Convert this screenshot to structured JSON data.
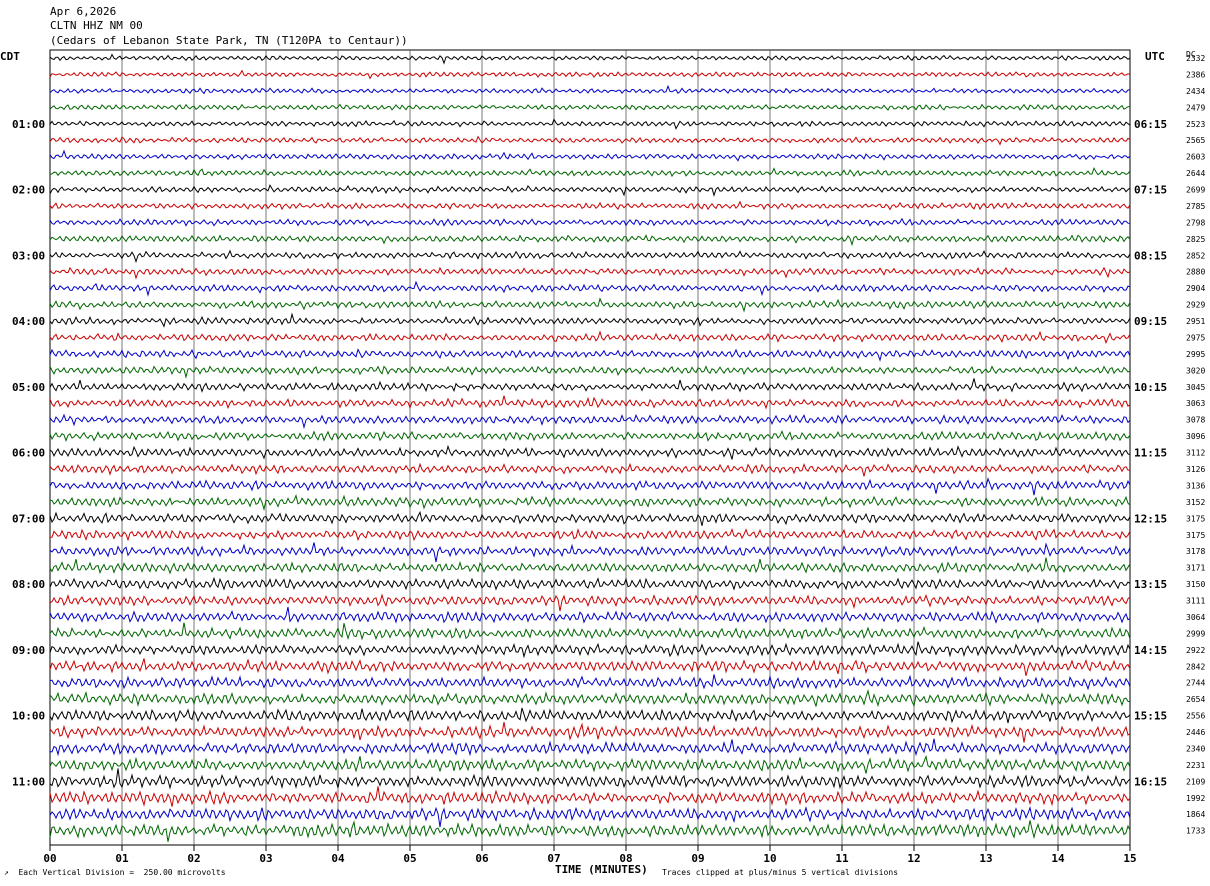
{
  "header": {
    "date": "Apr 6,2026",
    "station": "CLTN HHZ NM 00",
    "location": "(Cedars of Lebanon State Park, TN (T120PA to Centaur))"
  },
  "footer": {
    "scale_note": "Each Vertical Division =  250.00 microvolts",
    "clip_note": "Traces clipped at plus/minus 5 vertical divisions"
  },
  "chart_data": {
    "type": "line",
    "title": "",
    "xlabel": "TIME (MINUTES)",
    "ylabel_left": "CDT",
    "ylabel_right": "UTC",
    "dc_label": "DC",
    "xlim": [
      0,
      15
    ],
    "x_ticks": [
      "00",
      "01",
      "02",
      "03",
      "04",
      "05",
      "06",
      "07",
      "08",
      "09",
      "10",
      "11",
      "12",
      "13",
      "14",
      "15"
    ],
    "left_time_labels": [
      "01:00",
      "02:00",
      "03:00",
      "04:00",
      "05:00",
      "06:00",
      "07:00",
      "08:00",
      "09:00",
      "10:00",
      "11:00"
    ],
    "right_time_labels": [
      "06:15",
      "07:15",
      "08:15",
      "09:15",
      "10:15",
      "11:15",
      "12:15",
      "13:15",
      "14:15",
      "15:15",
      "16:15"
    ],
    "trace_colors": [
      "#000000",
      "#cc0000",
      "#0000cc",
      "#006600"
    ],
    "dc_offsets": [
      2332,
      2386,
      2434,
      2479,
      2523,
      2565,
      2603,
      2644,
      2699,
      2785,
      2798,
      2825,
      2852,
      2880,
      2904,
      2929,
      2951,
      2975,
      2995,
      3020,
      3045,
      3063,
      3078,
      3096,
      3112,
      3126,
      3136,
      3152,
      3175,
      3175,
      3178,
      3171,
      3150,
      3111,
      3064,
      2999,
      2922,
      2842,
      2744,
      2654,
      2556,
      2446,
      2340,
      2231,
      2109,
      1992,
      1864,
      1733
    ],
    "grid": true
  }
}
